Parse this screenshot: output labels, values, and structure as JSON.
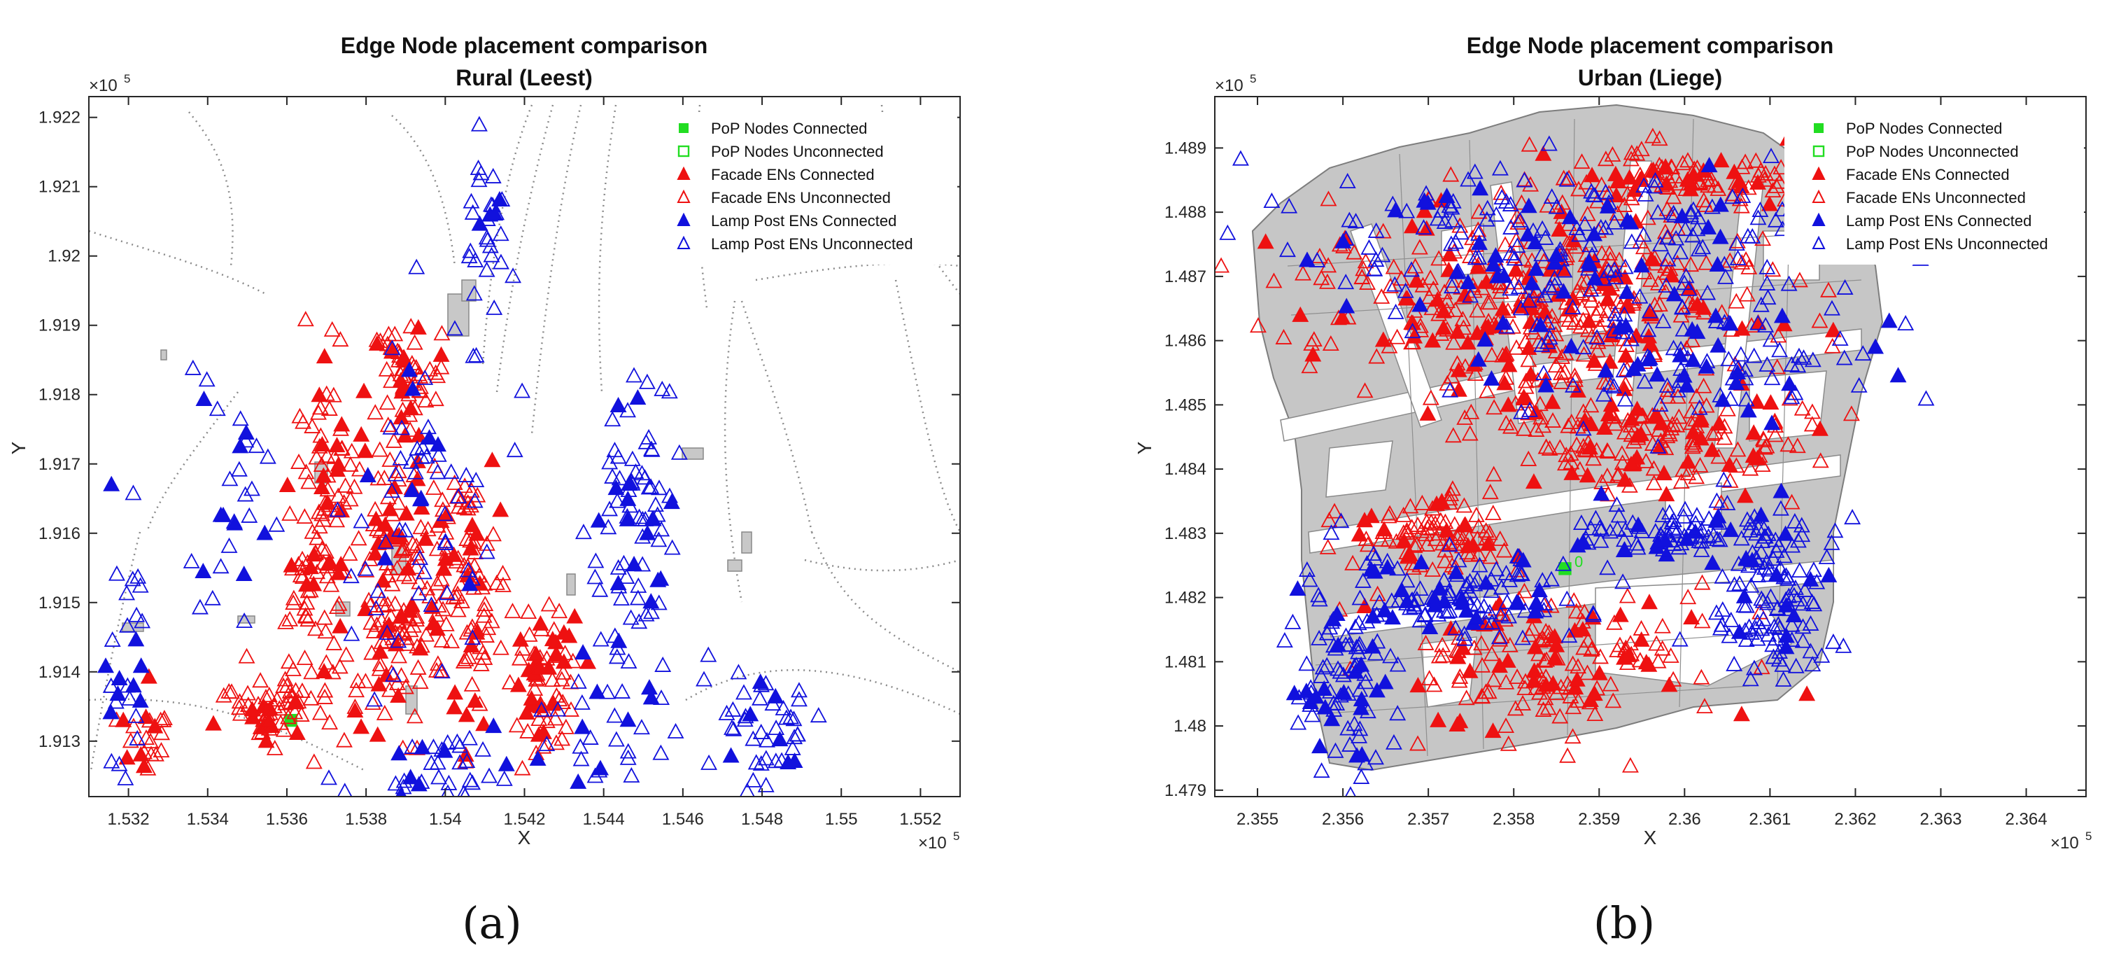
{
  "colors": {
    "pop": "#22dd22",
    "facade": "#ee1111",
    "lamp": "#1111dd",
    "building": "#c8c8c8",
    "building_edge": "#888888",
    "road": "#8a8a8a",
    "axis": "#262626"
  },
  "chart_data": [
    {
      "type": "scatter",
      "title": "Edge Node placement comparison",
      "subtitle": "Rural (Leest)",
      "xlabel": "X",
      "ylabel": "Y",
      "x_exponent": "×10",
      "x_exponent_power": "5",
      "y_exponent": "×10",
      "y_exponent_power": "5",
      "xlim": [
        1.531,
        1.553
      ],
      "ylim": [
        1.9122,
        1.9223
      ],
      "xticks": [
        1.532,
        1.534,
        1.536,
        1.538,
        1.54,
        1.542,
        1.544,
        1.546,
        1.548,
        1.55,
        1.552
      ],
      "xtick_labels": [
        "1.532",
        "1.534",
        "1.536",
        "1.538",
        "1.54",
        "1.542",
        "1.544",
        "1.546",
        "1.548",
        "1.55",
        "1.552"
      ],
      "yticks": [
        1.913,
        1.914,
        1.915,
        1.916,
        1.917,
        1.918,
        1.919,
        1.92,
        1.921,
        1.922
      ],
      "ytick_labels": [
        "1.913",
        "1.914",
        "1.915",
        "1.916",
        "1.917",
        "1.918",
        "1.919",
        "1.92",
        "1.921",
        "1.922"
      ],
      "legend": [
        "PoP Nodes Connected",
        "PoP Nodes Unconnected",
        "Facade ENs Connected",
        "Facade ENs Unconnected",
        "Lamp Post ENs Connected",
        "Lamp Post ENs Unconnected"
      ],
      "legend_position": "top-right",
      "caption": "(a)",
      "pop_nodes": [
        {
          "x": 1.5361,
          "y": 1.9133,
          "connected": true
        }
      ],
      "series": [
        {
          "name": "Facade ENs",
          "style": "facade",
          "density": 560,
          "seed": 11,
          "regions": [
            [
              1.537,
              1.916,
              0.0011,
              0.0028,
              0.24
            ],
            [
              1.5388,
              1.9152,
              0.0008,
              0.002,
              0.22
            ],
            [
              1.5405,
              1.9152,
              0.0011,
              0.0022,
              0.2
            ],
            [
              1.5425,
              1.914,
              0.0009,
              0.0012,
              0.12
            ],
            [
              1.5355,
              1.9134,
              0.0012,
              0.0005,
              0.1
            ],
            [
              1.539,
              1.9183,
              0.0009,
              0.0008,
              0.1
            ],
            [
              1.5325,
              1.913,
              0.0007,
              0.0004,
              0.04
            ]
          ]
        },
        {
          "name": "Lamp Post ENs",
          "style": "lamp",
          "density": 360,
          "seed": 23,
          "regions": [
            [
              1.545,
              1.916,
              0.001,
              0.0018,
              0.18
            ],
            [
              1.544,
              1.914,
              0.0014,
              0.003,
              0.14
            ],
            [
              1.548,
              1.913,
              0.0012,
              0.0012,
              0.14
            ],
            [
              1.5395,
              1.9165,
              0.002,
              0.003,
              0.18
            ],
            [
              1.54,
              1.9125,
              0.002,
              0.0008,
              0.12
            ],
            [
              1.532,
              1.914,
              0.0008,
              0.003,
              0.08
            ],
            [
              1.541,
              1.9205,
              0.0006,
              0.0012,
              0.08
            ],
            [
              1.5345,
              1.9165,
              0.0012,
              0.0018,
              0.08
            ]
          ]
        }
      ]
    },
    {
      "type": "scatter",
      "title": "Edge Node placement comparison",
      "subtitle": "Urban (Liege)",
      "xlabel": "X",
      "ylabel": "Y",
      "x_exponent": "×10",
      "x_exponent_power": "5",
      "y_exponent": "×10",
      "y_exponent_power": "5",
      "xlim": [
        2.3545,
        2.3647
      ],
      "ylim": [
        1.4789,
        1.4898
      ],
      "xticks": [
        2.355,
        2.356,
        2.357,
        2.358,
        2.359,
        2.36,
        2.361,
        2.362,
        2.363,
        2.364
      ],
      "xtick_labels": [
        "2.355",
        "2.356",
        "2.357",
        "2.358",
        "2.359",
        "2.36",
        "2.361",
        "2.362",
        "2.363",
        "2.364"
      ],
      "yticks": [
        1.479,
        1.48,
        1.481,
        1.482,
        1.483,
        1.484,
        1.485,
        1.486,
        1.487,
        1.488,
        1.489
      ],
      "ytick_labels": [
        "1.479",
        "1.48",
        "1.481",
        "1.482",
        "1.483",
        "1.484",
        "1.485",
        "1.486",
        "1.487",
        "1.488",
        "1.489"
      ],
      "legend": [
        "PoP Nodes Connected",
        "PoP Nodes Unconnected",
        "Facade ENs Connected",
        "Facade ENs Unconnected",
        "Lamp Post ENs Connected",
        "Lamp Post ENs Unconnected"
      ],
      "legend_position": "top-right",
      "caption": "(b)",
      "pop_nodes": [
        {
          "x": 2.3586,
          "y": 1.48245,
          "connected": true
        }
      ],
      "pop_label": "0",
      "series": [
        {
          "name": "Facade ENs",
          "style": "facade",
          "density": 900,
          "seed": 37,
          "regions": [
            [
              2.3585,
              1.4866,
              0.0028,
              0.0015,
              0.4
            ],
            [
              2.3595,
              1.4845,
              0.002,
              0.001,
              0.2
            ],
            [
              2.3585,
              1.481,
              0.0018,
              0.001,
              0.18
            ],
            [
              2.36,
              1.4885,
              0.0018,
              0.0005,
              0.12
            ],
            [
              2.357,
              1.483,
              0.001,
              0.0006,
              0.1
            ]
          ]
        },
        {
          "name": "Lamp Post ENs",
          "style": "lamp",
          "density": 720,
          "seed": 53,
          "regions": [
            [
              2.3585,
              1.4876,
              0.0035,
              0.0013,
              0.28
            ],
            [
              2.361,
              1.482,
              0.0008,
              0.0012,
              0.14
            ],
            [
              2.36,
              1.483,
              0.0015,
              0.0006,
              0.14
            ],
            [
              2.356,
              1.481,
              0.0006,
              0.0018,
              0.14
            ],
            [
              2.36,
              1.4858,
              0.0025,
              0.0012,
              0.16
            ],
            [
              2.3575,
              1.482,
              0.0012,
              0.0006,
              0.14
            ]
          ]
        }
      ]
    }
  ]
}
